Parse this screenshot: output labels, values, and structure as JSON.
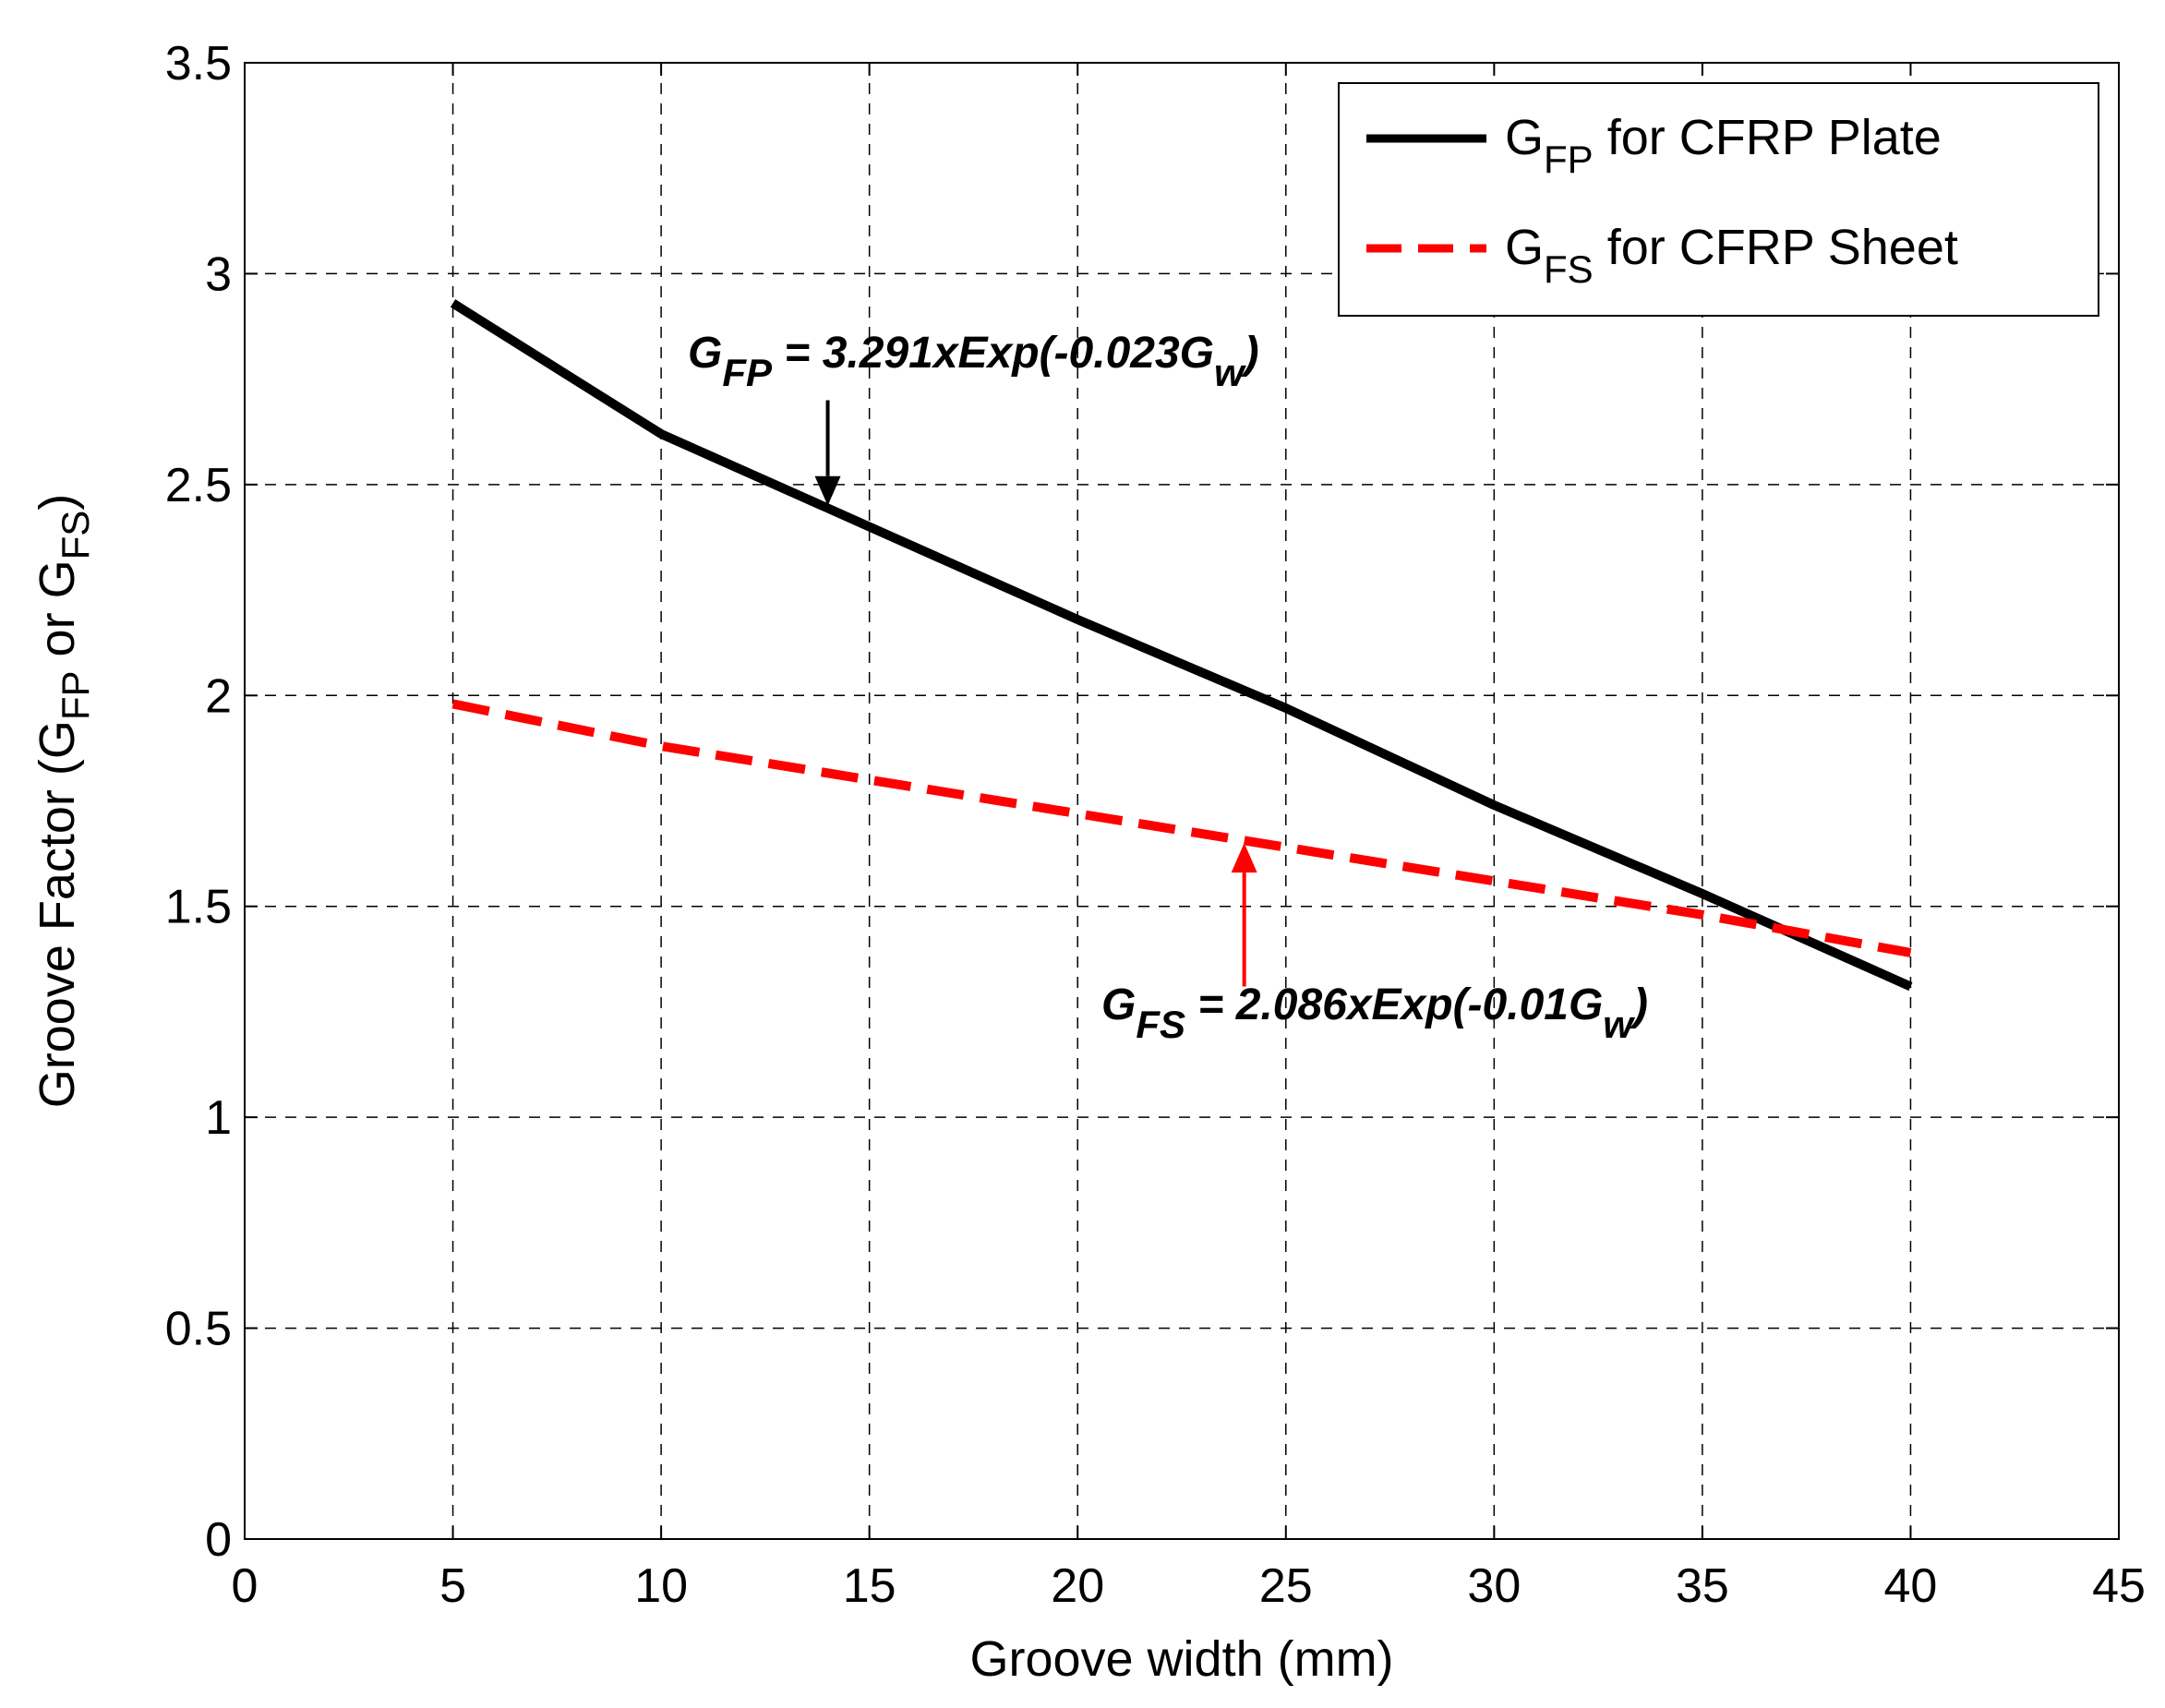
{
  "chart_data": {
    "type": "line",
    "title": "",
    "xlabel": "Groove width (mm)",
    "ylabel": {
      "prefix": "Groove Factor (G",
      "sub1": "FP",
      "mid": " or G",
      "sub2": "FS",
      "suffix": ")"
    },
    "xlim": [
      0,
      45
    ],
    "ylim": [
      0,
      3.5
    ],
    "xticks": [
      0,
      5,
      10,
      15,
      20,
      25,
      30,
      35,
      40,
      45
    ],
    "yticks": [
      0,
      0.5,
      1,
      1.5,
      2,
      2.5,
      3,
      3.5
    ],
    "xtick_labels": [
      "0",
      "5",
      "10",
      "15",
      "20",
      "25",
      "30",
      "35",
      "40",
      "45"
    ],
    "ytick_labels": [
      "0",
      "0.5",
      "1",
      "1.5",
      "2",
      "2.5",
      "3",
      "3.5"
    ],
    "grid": true,
    "legend_position": "top-right",
    "x": [
      5,
      10,
      15,
      20,
      25,
      30,
      35,
      40
    ],
    "series": [
      {
        "name": "GFP for CFRP Plate",
        "legend_main": "G",
        "legend_sub": "FP",
        "legend_rest": " for CFRP Plate",
        "color": "#000000",
        "style": "solid",
        "values": [
          2.93,
          2.62,
          2.4,
          2.18,
          1.97,
          1.74,
          1.53,
          1.31
        ]
      },
      {
        "name": "GFS for CFRP Sheet",
        "legend_main": "G",
        "legend_sub": "FS",
        "legend_rest": " for CFRP Sheet",
        "color": "#ff0000",
        "style": "dashed",
        "values": [
          1.98,
          1.88,
          1.8,
          1.72,
          1.64,
          1.56,
          1.48,
          1.39
        ]
      }
    ],
    "annotations": [
      {
        "main": "G",
        "sub": "FP",
        "rest": " = 3.291xExp(-0.023G",
        "sub2": "w",
        "close": ")",
        "color": "#000000",
        "arrow_to": [
          14,
          2.45
        ],
        "arrow_from": [
          14,
          2.7
        ]
      },
      {
        "main": "G",
        "sub": "FS",
        "rest": " = 2.086xExp(-0.01G",
        "sub2": "w",
        "close": ")",
        "color": "#ff0000",
        "arrow_to": [
          24,
          1.65
        ],
        "arrow_from": [
          24,
          1.31
        ]
      }
    ]
  }
}
